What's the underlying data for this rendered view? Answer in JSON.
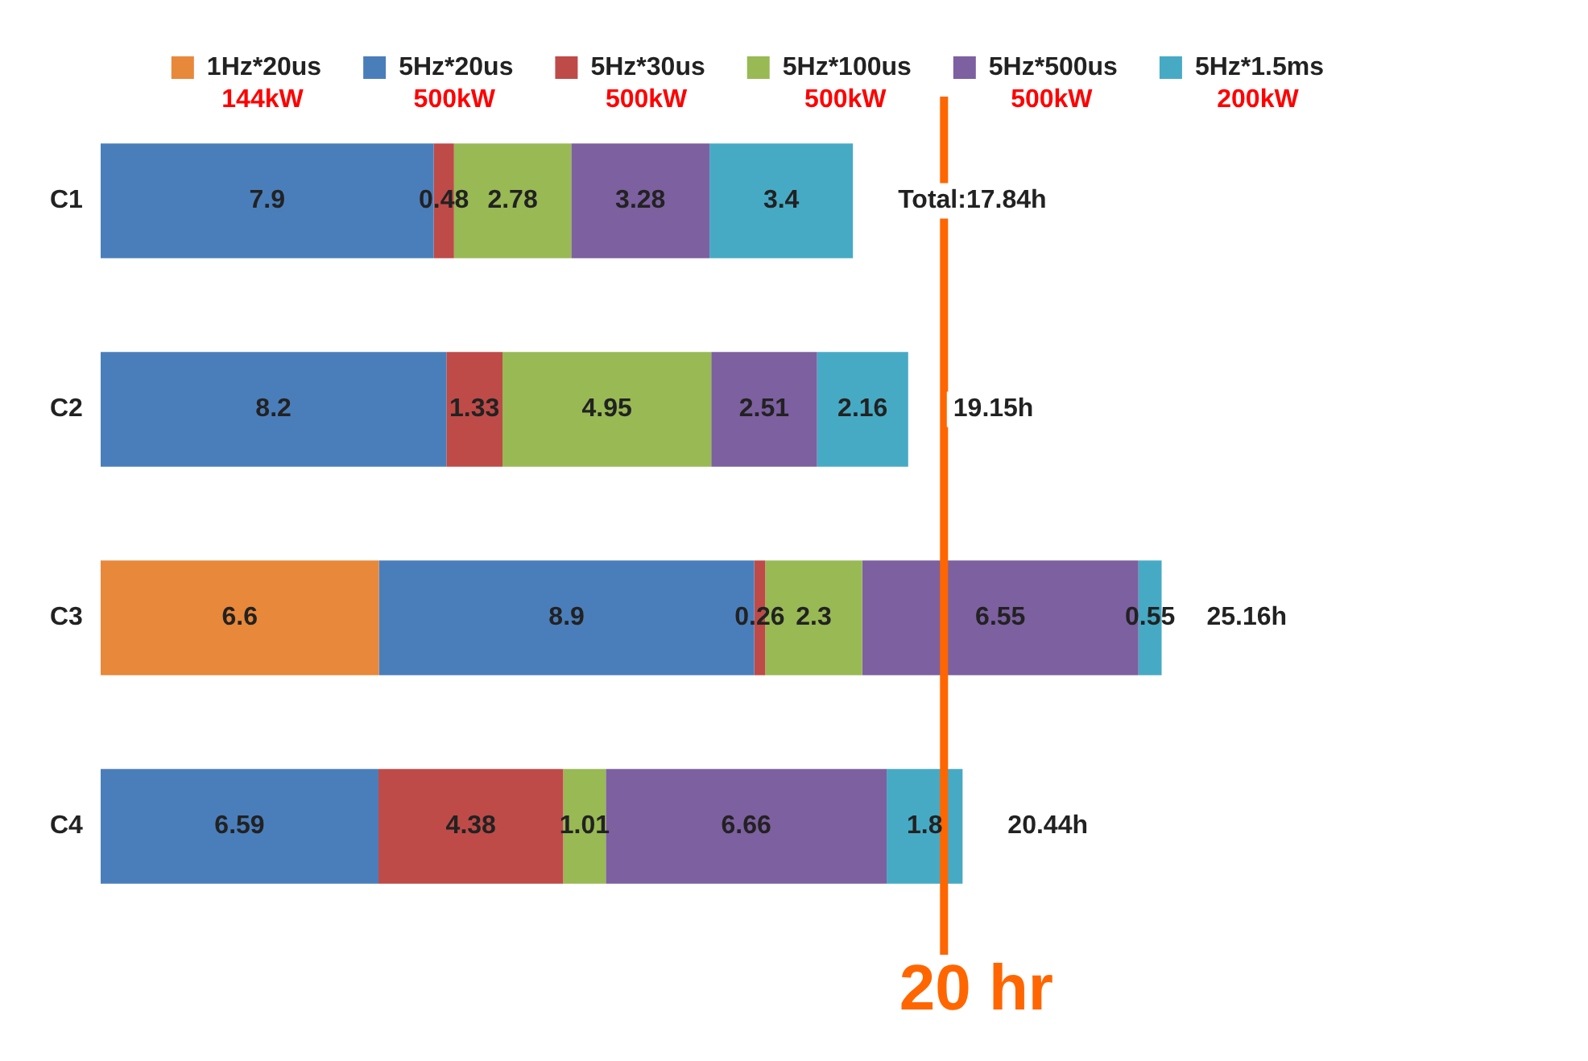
{
  "chart_data": {
    "type": "bar",
    "orientation": "horizontal",
    "stacked": true,
    "categories": [
      "C1",
      "C2",
      "C3",
      "C4"
    ],
    "series": [
      {
        "name": "1Hz*20us",
        "color": "#e8883a",
        "values": [
          null,
          null,
          6.6,
          null
        ]
      },
      {
        "name": "5Hz*20us",
        "color": "#4a7ebb",
        "values": [
          7.9,
          8.2,
          8.9,
          6.59
        ]
      },
      {
        "name": "5Hz*30us",
        "color": "#be4b48",
        "values": [
          0.48,
          1.33,
          0.26,
          4.38
        ]
      },
      {
        "name": "5Hz*100us",
        "color": "#98b954",
        "values": [
          2.78,
          4.95,
          2.3,
          1.01
        ]
      },
      {
        "name": "5Hz*500us",
        "color": "#7d60a0",
        "values": [
          3.28,
          2.51,
          6.55,
          6.66
        ]
      },
      {
        "name": "5Hz*1.5ms",
        "color": "#46aac5",
        "values": [
          3.4,
          2.16,
          0.55,
          1.8
        ]
      }
    ],
    "annotations": [
      "144kW",
      "500kW",
      "500kW",
      "500kW",
      "500kW",
      "200kW"
    ],
    "totals": [
      "Total:17.84h",
      "19.15h",
      "25.16h",
      "20.44h"
    ],
    "ref_lines": [
      {
        "axis": "x",
        "value": 20,
        "label": "20 hr",
        "color": "#ff6600"
      }
    ],
    "data_labels": true,
    "grid": false,
    "legend": "top",
    "tick_labels": "y"
  }
}
